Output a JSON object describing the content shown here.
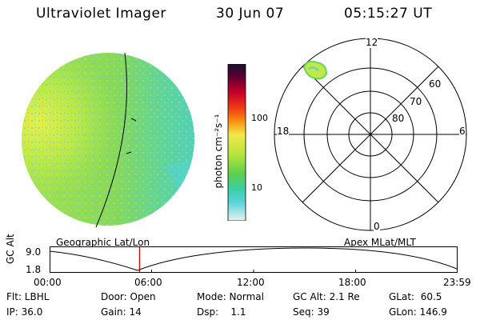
{
  "header": {
    "instrument": "Ultraviolet Imager",
    "date": "30 Jun 07",
    "time": "05:15:27 UT"
  },
  "colorbar": {
    "unit_label": "photon cm⁻²s⁻¹",
    "ticks": [
      "100",
      "10"
    ]
  },
  "polar": {
    "hour_top": "12",
    "hour_left": "18",
    "hour_right": "6",
    "hour_bottom": "0",
    "lat_labels": [
      "60",
      "70",
      "80"
    ]
  },
  "timeline": {
    "left_label": "Geographic Lat/Lon",
    "right_label": "Apex MLat/MLT",
    "axis_title": "GC Alt",
    "y_ticks": [
      "9.0",
      "1.8"
    ],
    "x_ticks": [
      "00:00",
      "06:00",
      "12:00",
      "18:00",
      "23:59"
    ],
    "current_time_fraction": 0.22
  },
  "status": {
    "row1": {
      "flt": "Flt: LBHL",
      "door": "Door: Open",
      "mode": "Mode: Normal",
      "gc_alt": "GC Alt: 2.1 Re",
      "glat": "GLat:  60.5"
    },
    "row2": {
      "ip": "IP: 36.0",
      "gain": "Gain: 14",
      "dsp": "Dsp:    1.1",
      "seq": "Seq: 39",
      "glon": "GLon: 146.9"
    }
  },
  "colors": {
    "track_line": "#000000",
    "time_marker": "#d00000"
  }
}
